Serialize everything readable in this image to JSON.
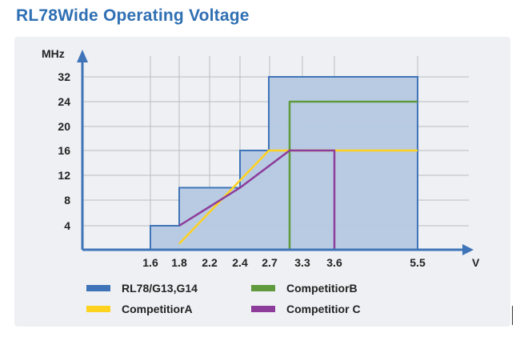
{
  "title": "RL78Wide Operating Voltage",
  "chart_data": {
    "type": "area",
    "title": "RL78Wide Operating Voltage",
    "xlabel": "V",
    "ylabel": "MHz",
    "x_ticks": [
      "1.6",
      "1.8",
      "2.2",
      "2.4",
      "2.7",
      "3.3",
      "3.6",
      "5.5"
    ],
    "y_ticks": [
      4,
      8,
      12,
      16,
      20,
      24,
      32
    ],
    "grid": true,
    "legend_position": "bottom",
    "series": [
      {
        "name": "RL78/G13,G14",
        "color": "#3f74b8",
        "fill": "#b4c8e2",
        "style": "step-area",
        "points": [
          [
            1.6,
            0
          ],
          [
            1.6,
            4
          ],
          [
            1.8,
            4
          ],
          [
            1.8,
            10
          ],
          [
            2.4,
            10
          ],
          [
            2.4,
            16
          ],
          [
            2.7,
            16
          ],
          [
            2.7,
            32
          ],
          [
            5.5,
            32
          ],
          [
            5.5,
            0
          ]
        ]
      },
      {
        "name": "CompetitiorA",
        "color": "#ffd21f",
        "style": "line",
        "points": [
          [
            1.8,
            1
          ],
          [
            2.7,
            16
          ],
          [
            5.5,
            16
          ]
        ]
      },
      {
        "name": "CompetitiorB",
        "color": "#5f9a3c",
        "style": "line",
        "points": [
          [
            3.0,
            0
          ],
          [
            3.0,
            24
          ],
          [
            5.5,
            24
          ]
        ]
      },
      {
        "name": "Competitior C",
        "color": "#8d3c9a",
        "style": "line",
        "points": [
          [
            1.8,
            4
          ],
          [
            2.4,
            10
          ],
          [
            3.0,
            16
          ],
          [
            3.6,
            16
          ],
          [
            3.6,
            0
          ]
        ]
      }
    ]
  },
  "legend": [
    {
      "label": "RL78/G13,G14",
      "color": "#3f74b8"
    },
    {
      "label": "CompetitiorB",
      "color": "#5f9a3c"
    },
    {
      "label": "CompetitiorA",
      "color": "#ffd21f"
    },
    {
      "label": "Competitior C",
      "color": "#8d3c9a"
    }
  ]
}
